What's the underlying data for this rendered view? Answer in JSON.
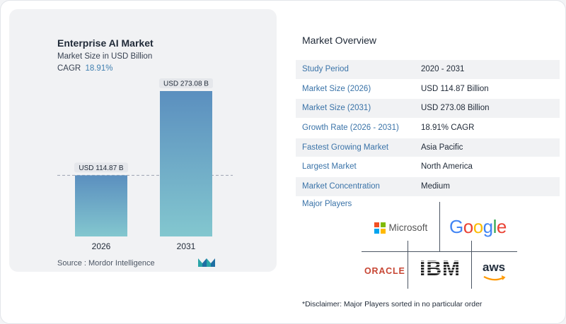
{
  "chart_card": {
    "title": "Enterprise AI Market",
    "subtitle": "Market Size in USD Billion",
    "cagr_label": "CAGR",
    "cagr_value": "18.91%",
    "source": "Source :  Mordor Intelligence"
  },
  "chart_data": {
    "type": "bar",
    "categories": [
      "2026",
      "2031"
    ],
    "values": [
      114.87,
      273.08
    ],
    "data_labels": [
      "USD 114.87 B",
      "USD 273.08 B"
    ],
    "title": "Enterprise AI Market",
    "subtitle": "Market Size in USD Billion",
    "xlabel": "",
    "ylabel": "",
    "ylim": [
      0,
      273.08
    ],
    "grid": false,
    "reference_line_at": 114.87
  },
  "overview": {
    "title": "Market Overview",
    "rows": [
      {
        "label": "Study Period",
        "value": "2020 - 2031"
      },
      {
        "label": "Market Size (2026)",
        "value": "USD 114.87 Billion"
      },
      {
        "label": "Market Size (2031)",
        "value": "USD 273.08 Billion"
      },
      {
        "label": "Growth Rate (2026 - 2031)",
        "value": "18.91% CAGR"
      },
      {
        "label": "Fastest Growing Market",
        "value": "Asia Pacific"
      },
      {
        "label": "Largest Market",
        "value": "North America"
      },
      {
        "label": "Market Concentration",
        "value": "Medium"
      }
    ]
  },
  "players": {
    "label": "Major Players",
    "logos": [
      {
        "name": "microsoft-logo",
        "text": "Microsoft"
      },
      {
        "name": "google-logo",
        "text": "Google"
      },
      {
        "name": "oracle-logo",
        "text": "ORACLE"
      },
      {
        "name": "ibm-logo",
        "text": "IBM"
      },
      {
        "name": "aws-logo",
        "text": "aws"
      }
    ]
  },
  "disclaimer": "*Disclaimer: Major Players sorted in no particular order",
  "colors": {
    "bar_top": "#5b8fbf",
    "bar_bottom": "#83c7cf",
    "label_accent": "#3a73a8",
    "card_bg": "#f1f2f4"
  }
}
